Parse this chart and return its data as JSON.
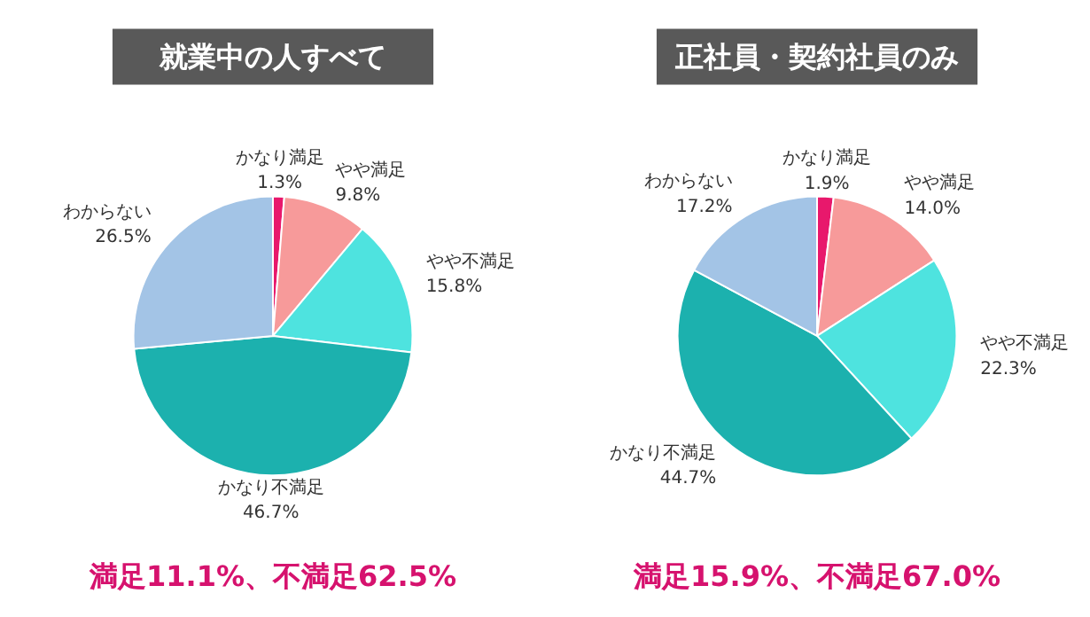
{
  "chart_data": [
    {
      "type": "pie",
      "title": "就業中の人すべて",
      "categories": [
        "かなり満足",
        "やや満足",
        "やや不満足",
        "かなり不満足",
        "わからない"
      ],
      "values": [
        1.3,
        9.8,
        15.8,
        46.7,
        26.5
      ],
      "colors": [
        "#e8186c",
        "#f79a9a",
        "#4ee3df",
        "#1cb1ae",
        "#a3c4e6"
      ],
      "value_labels": [
        "1.3%",
        "9.8%",
        "15.8%",
        "46.7%",
        "26.5%"
      ],
      "annotations": [
        "満足11.1%、不満足62.5%"
      ]
    },
    {
      "type": "pie",
      "title": "正社員・契約社員のみ",
      "categories": [
        "かなり満足",
        "やや満足",
        "やや不満足",
        "かなり不満足",
        "わからない"
      ],
      "values": [
        1.9,
        14.0,
        22.3,
        44.7,
        17.2
      ],
      "colors": [
        "#e8186c",
        "#f79a9a",
        "#4ee3df",
        "#1cb1ae",
        "#a3c4e6"
      ],
      "value_labels": [
        "1.9%",
        "14.0%",
        "22.3%",
        "44.7%",
        "17.2%"
      ],
      "annotations": [
        "満足15.9%、不満足67.0%"
      ]
    }
  ]
}
